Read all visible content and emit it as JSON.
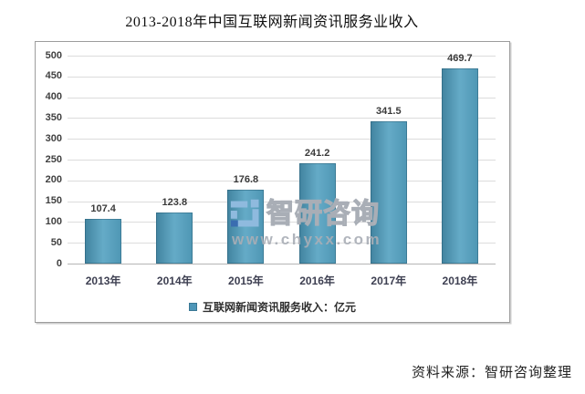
{
  "page": {
    "title": "2013-2018年中国互联网新闻资讯服务业收入",
    "source_note": "资料来源：智研咨询整理"
  },
  "watermark": {
    "brand": "智研咨询",
    "url": "www.chyxx.com",
    "logo_color_light": "#8fbade",
    "logo_color_dark": "#3a6db0"
  },
  "chart_data": {
    "type": "bar",
    "title": "2013-2018年中国互联网新闻资讯服务业收入",
    "categories": [
      "2013年",
      "2014年",
      "2015年",
      "2016年",
      "2017年",
      "2018年"
    ],
    "values": [
      107.4,
      123.8,
      176.8,
      241.2,
      341.5,
      469.7
    ],
    "legend": [
      "互联网新闻资讯服务收入：亿元"
    ],
    "legend_position": "bottom",
    "xlabel": "",
    "ylabel": "",
    "ylim": [
      0,
      500
    ],
    "ytick_step": 50,
    "grid": true,
    "bar_color": "#4e96b8",
    "value_labels": true
  }
}
